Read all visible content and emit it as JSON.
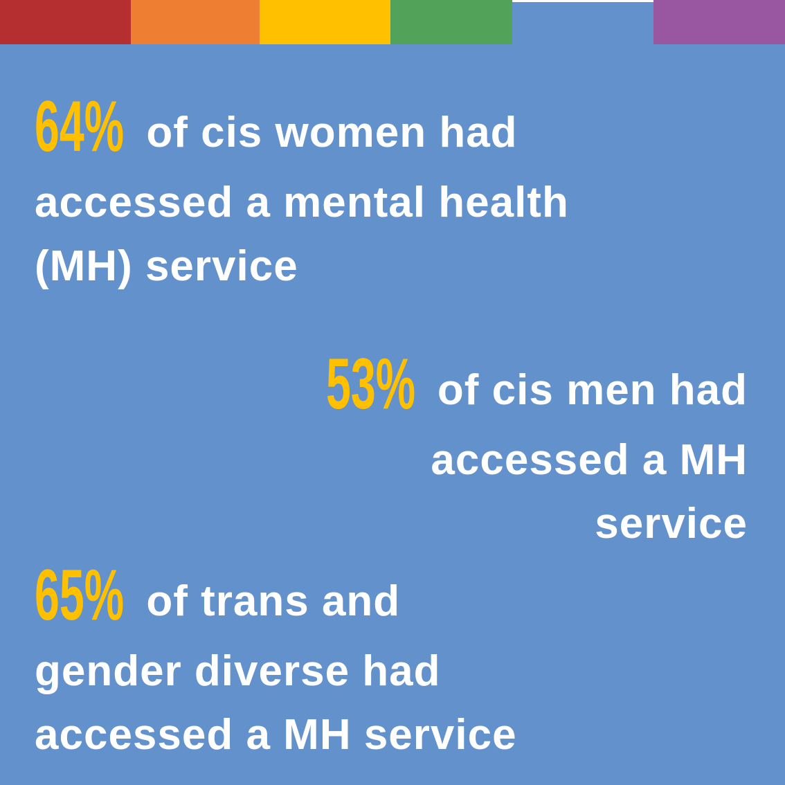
{
  "stats": [
    {
      "percent": "64%",
      "lines": [
        "of cis women had",
        "accessed a mental health",
        "(MH) service"
      ]
    },
    {
      "percent": "53%",
      "lines": [
        "of cis men had",
        "accessed a MH",
        "service"
      ]
    },
    {
      "percent": "65%",
      "lines": [
        "of trans and",
        "gender diverse had",
        "accessed a MH service"
      ]
    }
  ]
}
